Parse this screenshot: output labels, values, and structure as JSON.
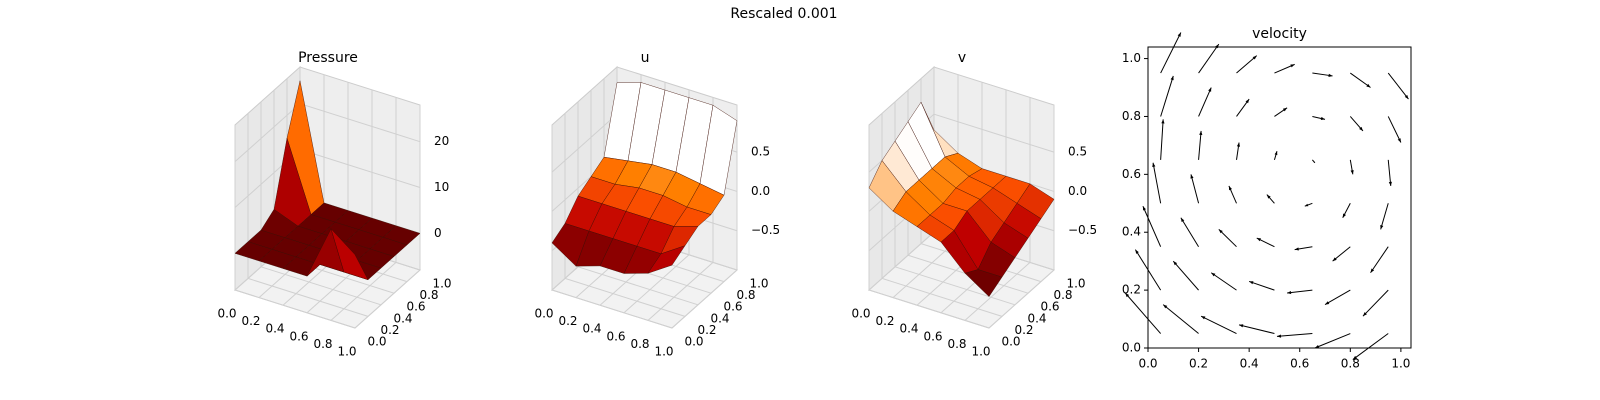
{
  "title": "Rescaled 0.001",
  "chart_data": [
    {
      "type": "surface3d",
      "title": "Pressure",
      "colormap": "gist_heat",
      "x": [
        0,
        0.2,
        0.4,
        0.6,
        0.8,
        1
      ],
      "y": [
        0,
        0.2,
        0.4,
        0.6,
        0.8,
        1
      ],
      "z": [
        [
          0,
          0,
          0,
          0,
          12,
          8
        ],
        [
          0,
          0,
          0,
          0,
          0,
          0
        ],
        [
          0,
          0,
          0,
          0,
          0,
          0
        ],
        [
          2,
          0,
          0,
          0,
          0,
          0
        ],
        [
          15,
          0,
          0,
          0,
          0,
          0
        ],
        [
          25,
          0,
          0,
          0,
          0,
          0
        ]
      ],
      "xlim": [
        0,
        1
      ],
      "ylim": [
        0,
        1
      ],
      "zlim": [
        -8,
        28
      ],
      "xticks": [
        {
          "value": 0,
          "label": "0.0"
        },
        {
          "value": 0.2,
          "label": "0.2"
        },
        {
          "value": 0.4,
          "label": "0.4"
        },
        {
          "value": 0.6,
          "label": "0.6"
        },
        {
          "value": 0.8,
          "label": "0.8"
        },
        {
          "value": 1,
          "label": "1.0"
        }
      ],
      "yticks": [
        {
          "value": 0,
          "label": "0.0"
        },
        {
          "value": 0.2,
          "label": "0.2"
        },
        {
          "value": 0.4,
          "label": "0.4"
        },
        {
          "value": 0.6,
          "label": "0.6"
        },
        {
          "value": 0.8,
          "label": "0.8"
        },
        {
          "value": 1,
          "label": "1.0"
        }
      ],
      "zticks": [
        0,
        10,
        20
      ]
    },
    {
      "type": "surface3d",
      "title": "u",
      "colormap": "gist_heat",
      "x": [
        0,
        0.2,
        0.4,
        0.6,
        0.8,
        1
      ],
      "y": [
        0,
        0.2,
        0.4,
        0.6,
        0.8,
        1
      ],
      "z": [
        [
          -0.4,
          -0.6,
          -0.5,
          -0.5,
          -0.4,
          -0.2
        ],
        [
          -0.3,
          -0.3,
          -0.3,
          -0.3,
          -0.3,
          -0.1
        ],
        [
          -0.1,
          -0.1,
          -0.1,
          -0.1,
          -0.1,
          0
        ],
        [
          0,
          0,
          0.05,
          0.05,
          0,
          0
        ],
        [
          0.1,
          0.15,
          0.2,
          0.2,
          0.15,
          0.1
        ],
        [
          0.9,
          1,
          1,
          1,
          1,
          0.9
        ]
      ],
      "xlim": [
        0,
        1
      ],
      "ylim": [
        0,
        1
      ],
      "zlim": [
        -1,
        1.1
      ],
      "xticks": [
        {
          "value": 0,
          "label": "0.0"
        },
        {
          "value": 0.2,
          "label": "0.2"
        },
        {
          "value": 0.4,
          "label": "0.4"
        },
        {
          "value": 0.6,
          "label": "0.6"
        },
        {
          "value": 0.8,
          "label": "0.8"
        },
        {
          "value": 1,
          "label": "1.0"
        }
      ],
      "yticks": [
        {
          "value": 0,
          "label": "0.0"
        },
        {
          "value": 0.2,
          "label": "0.2"
        },
        {
          "value": 0.4,
          "label": "0.4"
        },
        {
          "value": 0.6,
          "label": "0.6"
        },
        {
          "value": 0.8,
          "label": "0.8"
        },
        {
          "value": 1,
          "label": "1.0"
        }
      ],
      "zticks": [
        {
          "value": -0.5,
          "label": "−0.5"
        },
        {
          "value": 0,
          "label": "0.0"
        },
        {
          "value": 0.5,
          "label": "0.5"
        }
      ]
    },
    {
      "type": "surface3d",
      "title": "v",
      "colormap": "gist_heat",
      "x": [
        0,
        0.2,
        0.4,
        0.6,
        0.8,
        1
      ],
      "y": [
        0,
        0.2,
        0.4,
        0.6,
        0.8,
        1
      ],
      "z": [
        [
          0.3,
          0.1,
          0,
          -0.1,
          -0.4,
          -0.6
        ],
        [
          0.5,
          0.2,
          0,
          -0.1,
          -0.5,
          -0.5
        ],
        [
          0.6,
          0.2,
          0,
          0,
          -0.3,
          -0.4
        ],
        [
          0.7,
          0.2,
          0.05,
          0,
          -0.2,
          -0.3
        ],
        [
          0.8,
          0.2,
          0.05,
          0,
          -0.1,
          -0.2
        ],
        [
          0.3,
          0.1,
          0,
          0,
          0,
          -0.1
        ]
      ],
      "xlim": [
        0,
        1
      ],
      "ylim": [
        0,
        1
      ],
      "zlim": [
        -1,
        1.1
      ],
      "xticks": [
        {
          "value": 0,
          "label": "0.0"
        },
        {
          "value": 0.2,
          "label": "0.2"
        },
        {
          "value": 0.4,
          "label": "0.4"
        },
        {
          "value": 0.6,
          "label": "0.6"
        },
        {
          "value": 0.8,
          "label": "0.8"
        },
        {
          "value": 1,
          "label": "1.0"
        }
      ],
      "yticks": [
        {
          "value": 0,
          "label": "0.0"
        },
        {
          "value": 0.2,
          "label": "0.2"
        },
        {
          "value": 0.4,
          "label": "0.4"
        },
        {
          "value": 0.6,
          "label": "0.6"
        },
        {
          "value": 0.8,
          "label": "0.8"
        },
        {
          "value": 1,
          "label": "1.0"
        }
      ],
      "zticks": [
        {
          "value": -0.5,
          "label": "−0.5"
        },
        {
          "value": 0,
          "label": "0.0"
        },
        {
          "value": 0.5,
          "label": "0.5"
        }
      ]
    },
    {
      "type": "quiver",
      "title": "velocity",
      "color": "#000000",
      "x": [
        0.05,
        0.2,
        0.35,
        0.5,
        0.65,
        0.8,
        0.95
      ],
      "y": [
        0.05,
        0.2,
        0.35,
        0.5,
        0.65,
        0.8,
        0.95
      ],
      "u": [
        [
          -0.14,
          -0.14,
          -0.14,
          -0.14,
          -0.14,
          -0.14,
          -0.14
        ],
        [
          -0.1,
          -0.1,
          -0.1,
          -0.1,
          -0.1,
          -0.1,
          -0.1
        ],
        [
          -0.07,
          -0.07,
          -0.07,
          -0.07,
          -0.07,
          -0.07,
          -0.07
        ],
        [
          -0.03,
          -0.03,
          -0.03,
          -0.03,
          -0.03,
          -0.03,
          -0.03
        ],
        [
          0.01,
          0.01,
          0.01,
          0.01,
          0.01,
          0.01,
          0.01
        ],
        [
          0.05,
          0.05,
          0.05,
          0.05,
          0.05,
          0.05,
          0.05
        ],
        [
          0.08,
          0.08,
          0.08,
          0.08,
          0.08,
          0.08,
          0.08
        ]
      ],
      "v": [
        [
          0.14,
          0.1,
          0.06,
          0.03,
          -0.01,
          -0.05,
          -0.09
        ],
        [
          0.14,
          0.1,
          0.06,
          0.03,
          -0.01,
          -0.05,
          -0.09
        ],
        [
          0.14,
          0.1,
          0.06,
          0.03,
          -0.01,
          -0.05,
          -0.09
        ],
        [
          0.14,
          0.1,
          0.06,
          0.03,
          -0.01,
          -0.05,
          -0.09
        ],
        [
          0.14,
          0.1,
          0.06,
          0.03,
          -0.01,
          -0.05,
          -0.09
        ],
        [
          0.14,
          0.1,
          0.06,
          0.03,
          -0.01,
          -0.05,
          -0.09
        ],
        [
          0.14,
          0.1,
          0.06,
          0.03,
          -0.01,
          -0.05,
          -0.09
        ]
      ],
      "xlim": [
        0,
        1.04
      ],
      "ylim": [
        0,
        1.04
      ],
      "xticks": [
        {
          "value": 0,
          "label": "0.0"
        },
        {
          "value": 0.2,
          "label": "0.2"
        },
        {
          "value": 0.4,
          "label": "0.4"
        },
        {
          "value": 0.6,
          "label": "0.6"
        },
        {
          "value": 0.8,
          "label": "0.8"
        },
        {
          "value": 1,
          "label": "1.0"
        }
      ],
      "yticks": [
        {
          "value": 0,
          "label": "0.0"
        },
        {
          "value": 0.2,
          "label": "0.2"
        },
        {
          "value": 0.4,
          "label": "0.4"
        },
        {
          "value": 0.6,
          "label": "0.6"
        },
        {
          "value": 0.8,
          "label": "0.8"
        },
        {
          "value": 1,
          "label": "1.0"
        }
      ]
    }
  ]
}
